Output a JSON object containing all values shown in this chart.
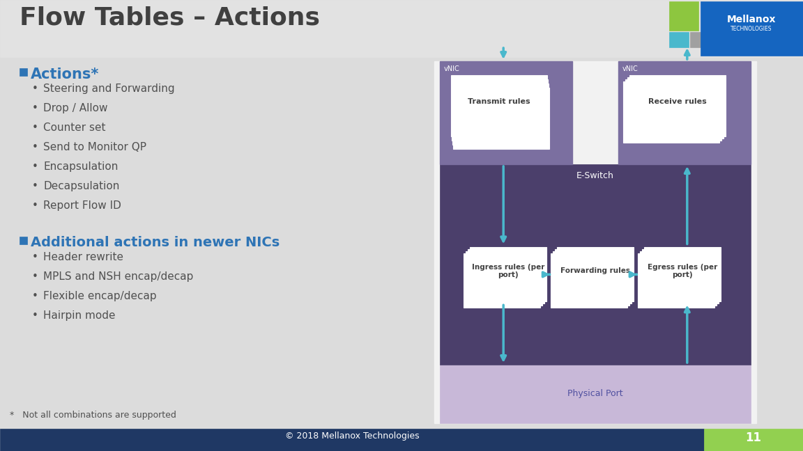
{
  "title": "Flow Tables – Actions",
  "title_color": "#404040",
  "bg_color": "#dcdcdc",
  "section1_header": "Actions*",
  "section1_color": "#2e74b5",
  "section1_bullets": [
    "Steering and Forwarding",
    "Drop / Allow",
    "Counter set",
    "Send to Monitor QP",
    "Encapsulation",
    "Decapsulation",
    "Report Flow ID"
  ],
  "section2_header": "Additional actions in newer NICs",
  "section2_color": "#2e74b5",
  "section2_bullets": [
    "Header rewrite",
    "MPLS and NSH encap/decap",
    "Flexible encap/decap",
    "Hairpin mode"
  ],
  "footnote": "*   Not all combinations are supported",
  "footer_text": "© 2018 Mellanox Technologies",
  "footer_bg": "#1f3864",
  "page_number": "11",
  "page_num_bg": "#92d050",
  "eswitch_bg": "#4b3f6b",
  "eswitch_label": "E-Switch",
  "vnic_bg": "#7b6fa0",
  "vnic_label": "vNIC",
  "physical_port_bg": "#c8b8d8",
  "physical_port_label": "Physical Port",
  "transmit_label": "Transmit rules",
  "receive_label": "Receive rules",
  "ingress_label": "Ingress rules (per\nport)",
  "forwarding_label": "Forwarding rules",
  "egress_label": "Egress rules (per\nport)",
  "arrow_color": "#4ab8cc",
  "white": "#ffffff",
  "mellanox_blue": "#1565c0",
  "green_square": "#8dc63f",
  "light_blue_square": "#4ab8cc",
  "gray_square": "#a0a0a0"
}
